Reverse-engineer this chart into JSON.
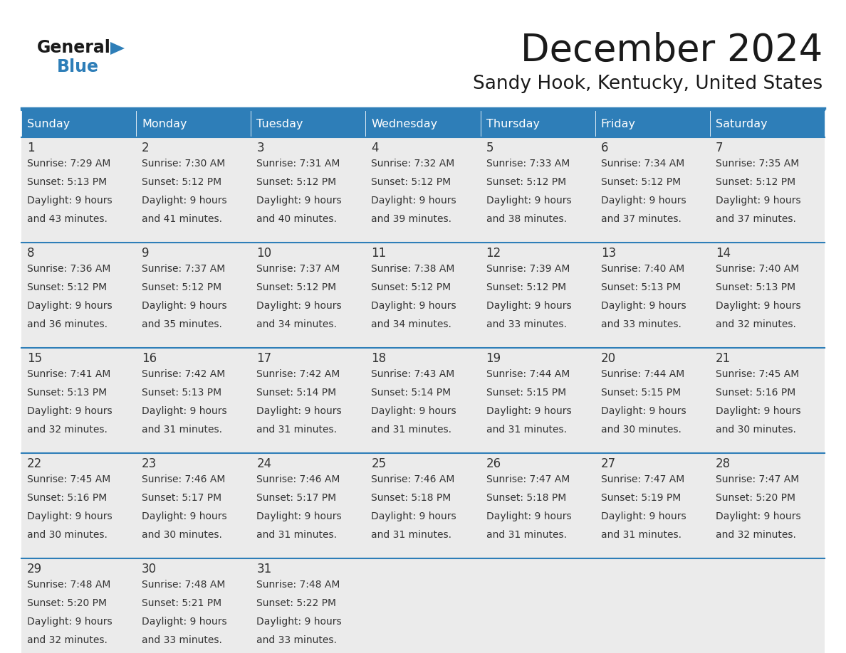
{
  "title": "December 2024",
  "subtitle": "Sandy Hook, Kentucky, United States",
  "header_color": "#2E7EB8",
  "header_text_color": "#FFFFFF",
  "cell_bg_color": "#EBEBEB",
  "day_number_color": "#333333",
  "cell_text_color": "#333333",
  "border_color": "#2E7EB8",
  "days_of_week": [
    "Sunday",
    "Monday",
    "Tuesday",
    "Wednesday",
    "Thursday",
    "Friday",
    "Saturday"
  ],
  "calendar_data": [
    [
      {
        "day": "1",
        "sunrise": "7:29 AM",
        "sunset": "5:13 PM",
        "daylight1": "9 hours",
        "daylight2": "and 43 minutes."
      },
      {
        "day": "2",
        "sunrise": "7:30 AM",
        "sunset": "5:12 PM",
        "daylight1": "9 hours",
        "daylight2": "and 41 minutes."
      },
      {
        "day": "3",
        "sunrise": "7:31 AM",
        "sunset": "5:12 PM",
        "daylight1": "9 hours",
        "daylight2": "and 40 minutes."
      },
      {
        "day": "4",
        "sunrise": "7:32 AM",
        "sunset": "5:12 PM",
        "daylight1": "9 hours",
        "daylight2": "and 39 minutes."
      },
      {
        "day": "5",
        "sunrise": "7:33 AM",
        "sunset": "5:12 PM",
        "daylight1": "9 hours",
        "daylight2": "and 38 minutes."
      },
      {
        "day": "6",
        "sunrise": "7:34 AM",
        "sunset": "5:12 PM",
        "daylight1": "9 hours",
        "daylight2": "and 37 minutes."
      },
      {
        "day": "7",
        "sunrise": "7:35 AM",
        "sunset": "5:12 PM",
        "daylight1": "9 hours",
        "daylight2": "and 37 minutes."
      }
    ],
    [
      {
        "day": "8",
        "sunrise": "7:36 AM",
        "sunset": "5:12 PM",
        "daylight1": "9 hours",
        "daylight2": "and 36 minutes."
      },
      {
        "day": "9",
        "sunrise": "7:37 AM",
        "sunset": "5:12 PM",
        "daylight1": "9 hours",
        "daylight2": "and 35 minutes."
      },
      {
        "day": "10",
        "sunrise": "7:37 AM",
        "sunset": "5:12 PM",
        "daylight1": "9 hours",
        "daylight2": "and 34 minutes."
      },
      {
        "day": "11",
        "sunrise": "7:38 AM",
        "sunset": "5:12 PM",
        "daylight1": "9 hours",
        "daylight2": "and 34 minutes."
      },
      {
        "day": "12",
        "sunrise": "7:39 AM",
        "sunset": "5:12 PM",
        "daylight1": "9 hours",
        "daylight2": "and 33 minutes."
      },
      {
        "day": "13",
        "sunrise": "7:40 AM",
        "sunset": "5:13 PM",
        "daylight1": "9 hours",
        "daylight2": "and 33 minutes."
      },
      {
        "day": "14",
        "sunrise": "7:40 AM",
        "sunset": "5:13 PM",
        "daylight1": "9 hours",
        "daylight2": "and 32 minutes."
      }
    ],
    [
      {
        "day": "15",
        "sunrise": "7:41 AM",
        "sunset": "5:13 PM",
        "daylight1": "9 hours",
        "daylight2": "and 32 minutes."
      },
      {
        "day": "16",
        "sunrise": "7:42 AM",
        "sunset": "5:13 PM",
        "daylight1": "9 hours",
        "daylight2": "and 31 minutes."
      },
      {
        "day": "17",
        "sunrise": "7:42 AM",
        "sunset": "5:14 PM",
        "daylight1": "9 hours",
        "daylight2": "and 31 minutes."
      },
      {
        "day": "18",
        "sunrise": "7:43 AM",
        "sunset": "5:14 PM",
        "daylight1": "9 hours",
        "daylight2": "and 31 minutes."
      },
      {
        "day": "19",
        "sunrise": "7:44 AM",
        "sunset": "5:15 PM",
        "daylight1": "9 hours",
        "daylight2": "and 31 minutes."
      },
      {
        "day": "20",
        "sunrise": "7:44 AM",
        "sunset": "5:15 PM",
        "daylight1": "9 hours",
        "daylight2": "and 30 minutes."
      },
      {
        "day": "21",
        "sunrise": "7:45 AM",
        "sunset": "5:16 PM",
        "daylight1": "9 hours",
        "daylight2": "and 30 minutes."
      }
    ],
    [
      {
        "day": "22",
        "sunrise": "7:45 AM",
        "sunset": "5:16 PM",
        "daylight1": "9 hours",
        "daylight2": "and 30 minutes."
      },
      {
        "day": "23",
        "sunrise": "7:46 AM",
        "sunset": "5:17 PM",
        "daylight1": "9 hours",
        "daylight2": "and 30 minutes."
      },
      {
        "day": "24",
        "sunrise": "7:46 AM",
        "sunset": "5:17 PM",
        "daylight1": "9 hours",
        "daylight2": "and 31 minutes."
      },
      {
        "day": "25",
        "sunrise": "7:46 AM",
        "sunset": "5:18 PM",
        "daylight1": "9 hours",
        "daylight2": "and 31 minutes."
      },
      {
        "day": "26",
        "sunrise": "7:47 AM",
        "sunset": "5:18 PM",
        "daylight1": "9 hours",
        "daylight2": "and 31 minutes."
      },
      {
        "day": "27",
        "sunrise": "7:47 AM",
        "sunset": "5:19 PM",
        "daylight1": "9 hours",
        "daylight2": "and 31 minutes."
      },
      {
        "day": "28",
        "sunrise": "7:47 AM",
        "sunset": "5:20 PM",
        "daylight1": "9 hours",
        "daylight2": "and 32 minutes."
      }
    ],
    [
      {
        "day": "29",
        "sunrise": "7:48 AM",
        "sunset": "5:20 PM",
        "daylight1": "9 hours",
        "daylight2": "and 32 minutes."
      },
      {
        "day": "30",
        "sunrise": "7:48 AM",
        "sunset": "5:21 PM",
        "daylight1": "9 hours",
        "daylight2": "and 33 minutes."
      },
      {
        "day": "31",
        "sunrise": "7:48 AM",
        "sunset": "5:22 PM",
        "daylight1": "9 hours",
        "daylight2": "and 33 minutes."
      },
      null,
      null,
      null,
      null
    ]
  ],
  "logo_general_color": "#1a1a1a",
  "logo_blue_color": "#2E7EB8",
  "logo_triangle_color": "#2E7EB8"
}
